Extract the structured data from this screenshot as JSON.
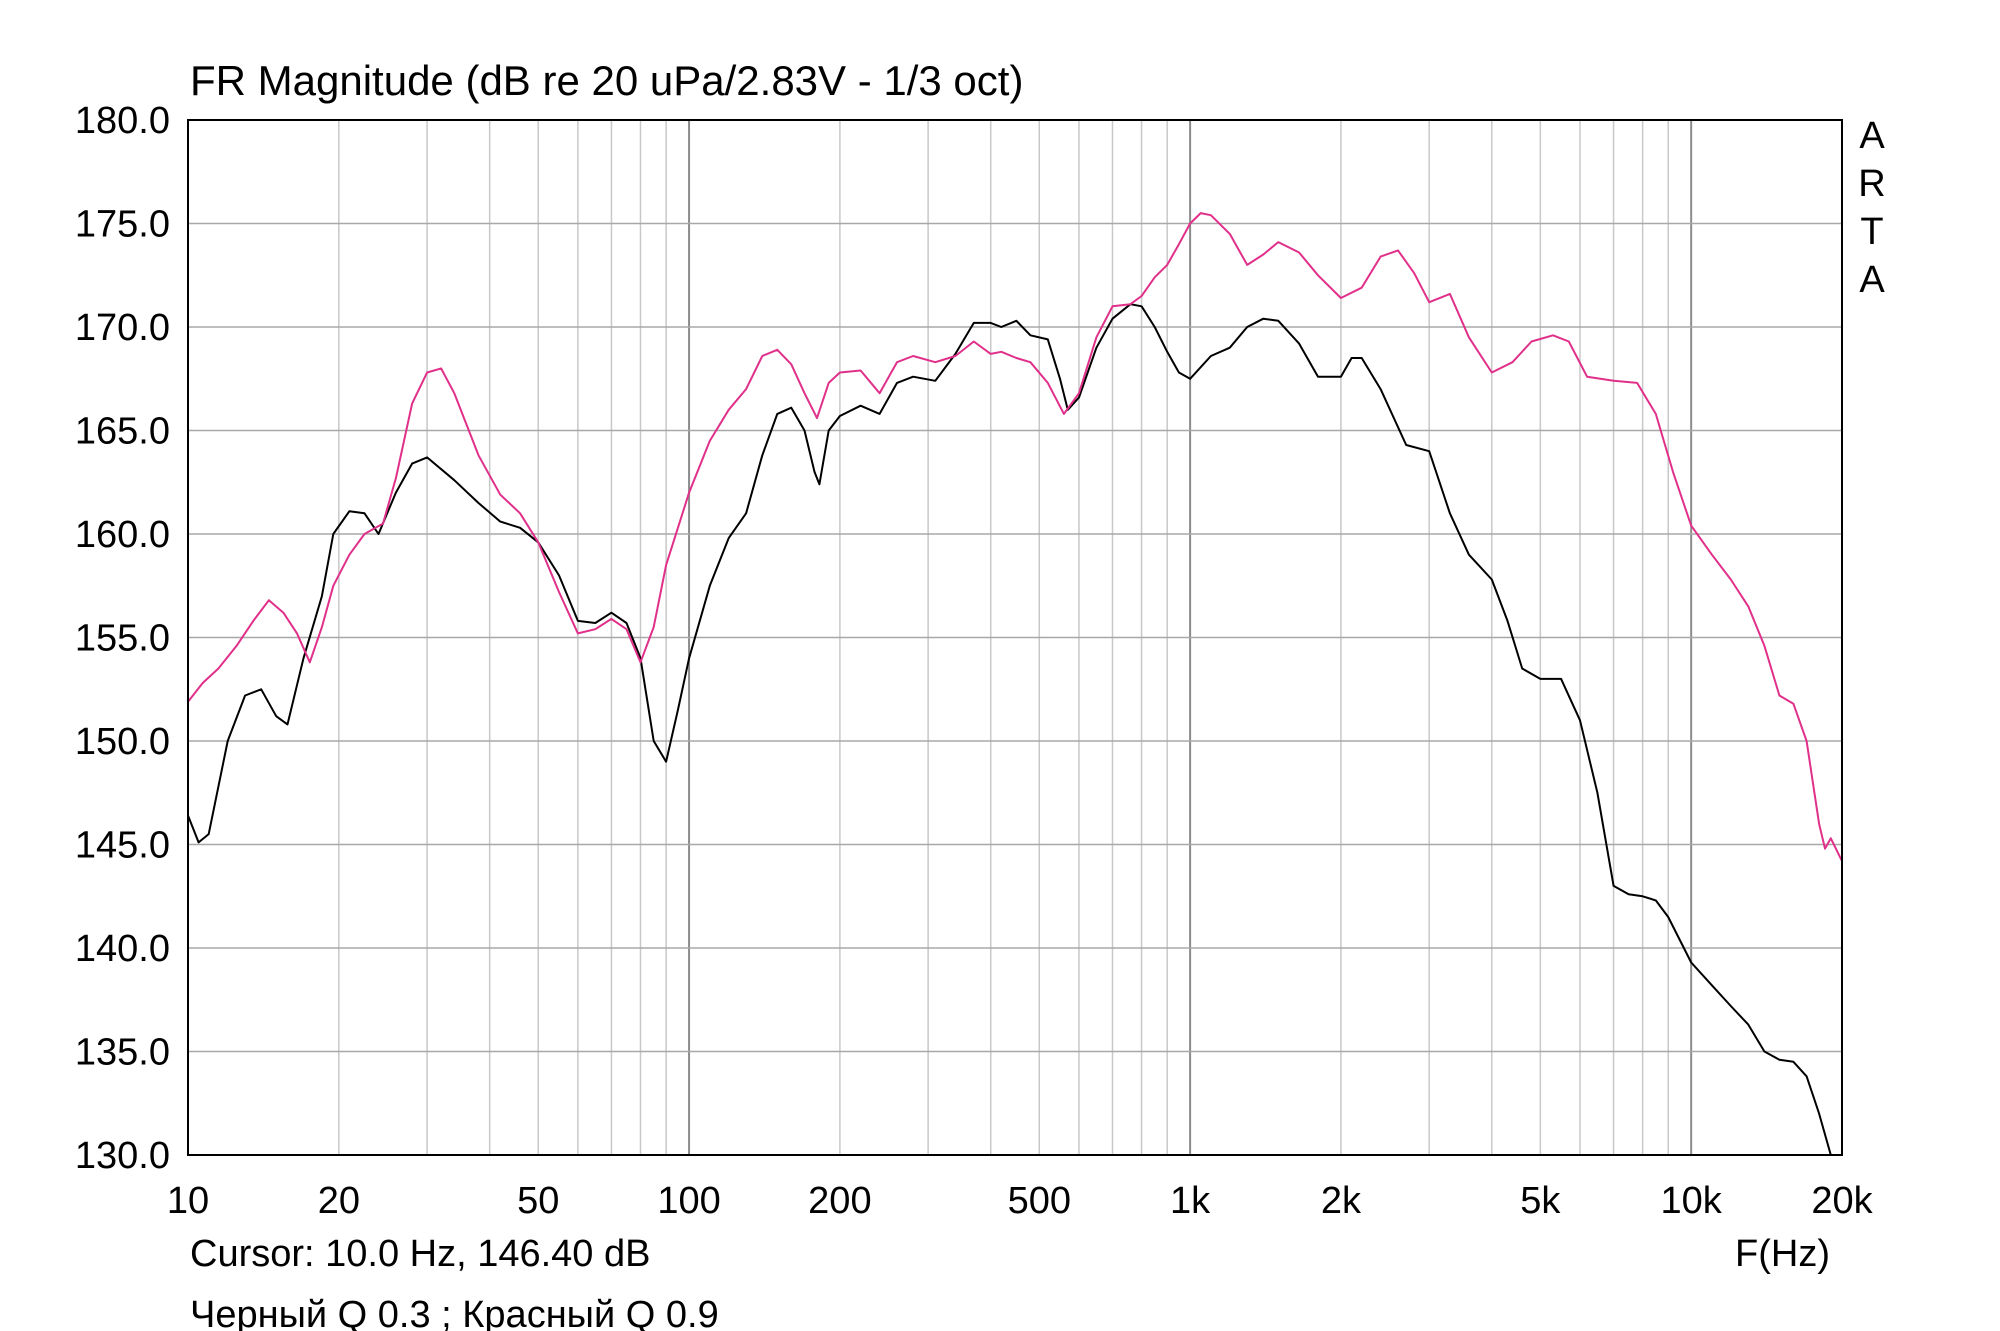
{
  "chart_data": {
    "type": "line",
    "title": "FR Magnitude (dB re 20 uPa/2.83V - 1/3 oct)",
    "xlabel": "F(Hz)",
    "ylabel": "",
    "x_scale": "log",
    "xlim": [
      10,
      20000
    ],
    "ylim": [
      130,
      180
    ],
    "grid": true,
    "y_ticks": [
      "180.0",
      "175.0",
      "170.0",
      "165.0",
      "160.0",
      "155.0",
      "150.0",
      "145.0",
      "140.0",
      "135.0",
      "130.0"
    ],
    "x_ticks": [
      {
        "value": 10,
        "label": "10"
      },
      {
        "value": 20,
        "label": "20"
      },
      {
        "value": 50,
        "label": "50"
      },
      {
        "value": 100,
        "label": "100"
      },
      {
        "value": 200,
        "label": "200"
      },
      {
        "value": 500,
        "label": "500"
      },
      {
        "value": 1000,
        "label": "1k"
      },
      {
        "value": 2000,
        "label": "2k"
      },
      {
        "value": 5000,
        "label": "5k"
      },
      {
        "value": 10000,
        "label": "10k"
      },
      {
        "value": 20000,
        "label": "20k"
      }
    ],
    "series": [
      {
        "color": "#000000",
        "points": [
          [
            10,
            146.4
          ],
          [
            10.5,
            145.1
          ],
          [
            11,
            145.5
          ],
          [
            12,
            150.0
          ],
          [
            13,
            152.2
          ],
          [
            14,
            152.5
          ],
          [
            15,
            151.2
          ],
          [
            15.8,
            150.8
          ],
          [
            17,
            154.0
          ],
          [
            18.5,
            157.0
          ],
          [
            19.5,
            160.0
          ],
          [
            21,
            161.1
          ],
          [
            22.5,
            161.0
          ],
          [
            24,
            160.0
          ],
          [
            26,
            162.0
          ],
          [
            28,
            163.4
          ],
          [
            30,
            163.7
          ],
          [
            34,
            162.6
          ],
          [
            38,
            161.5
          ],
          [
            42,
            160.6
          ],
          [
            46,
            160.3
          ],
          [
            50,
            159.6
          ],
          [
            55,
            158.0
          ],
          [
            60,
            155.8
          ],
          [
            65,
            155.7
          ],
          [
            70,
            156.2
          ],
          [
            75,
            155.7
          ],
          [
            80,
            154.0
          ],
          [
            85,
            150.0
          ],
          [
            90,
            149.0
          ],
          [
            95,
            151.5
          ],
          [
            100,
            154.0
          ],
          [
            110,
            157.5
          ],
          [
            120,
            159.8
          ],
          [
            130,
            161.0
          ],
          [
            140,
            163.8
          ],
          [
            150,
            165.8
          ],
          [
            160,
            166.1
          ],
          [
            170,
            165.0
          ],
          [
            178,
            163.0
          ],
          [
            182,
            162.4
          ],
          [
            190,
            165.0
          ],
          [
            200,
            165.7
          ],
          [
            220,
            166.2
          ],
          [
            240,
            165.8
          ],
          [
            260,
            167.3
          ],
          [
            280,
            167.6
          ],
          [
            310,
            167.4
          ],
          [
            340,
            168.7
          ],
          [
            370,
            170.2
          ],
          [
            400,
            170.2
          ],
          [
            420,
            170.0
          ],
          [
            450,
            170.3
          ],
          [
            480,
            169.6
          ],
          [
            520,
            169.4
          ],
          [
            550,
            167.5
          ],
          [
            570,
            166.0
          ],
          [
            600,
            166.6
          ],
          [
            650,
            169.0
          ],
          [
            700,
            170.4
          ],
          [
            760,
            171.1
          ],
          [
            800,
            171.0
          ],
          [
            850,
            170.0
          ],
          [
            900,
            168.8
          ],
          [
            950,
            167.8
          ],
          [
            1000,
            167.5
          ],
          [
            1100,
            168.6
          ],
          [
            1200,
            169.0
          ],
          [
            1300,
            170.0
          ],
          [
            1400,
            170.4
          ],
          [
            1500,
            170.3
          ],
          [
            1650,
            169.2
          ],
          [
            1800,
            167.6
          ],
          [
            2000,
            167.6
          ],
          [
            2100,
            168.5
          ],
          [
            2200,
            168.5
          ],
          [
            2400,
            167.0
          ],
          [
            2700,
            164.3
          ],
          [
            3000,
            164.0
          ],
          [
            3300,
            161.0
          ],
          [
            3600,
            159.0
          ],
          [
            4000,
            157.8
          ],
          [
            4300,
            155.8
          ],
          [
            4600,
            153.5
          ],
          [
            5000,
            153.0
          ],
          [
            5500,
            153.0
          ],
          [
            6000,
            151.0
          ],
          [
            6500,
            147.5
          ],
          [
            7000,
            143.0
          ],
          [
            7500,
            142.6
          ],
          [
            8000,
            142.5
          ],
          [
            8500,
            142.3
          ],
          [
            9000,
            141.5
          ],
          [
            10000,
            139.3
          ],
          [
            11000,
            138.2
          ],
          [
            12000,
            137.2
          ],
          [
            13000,
            136.3
          ],
          [
            14000,
            135.0
          ],
          [
            15000,
            134.6
          ],
          [
            16000,
            134.5
          ],
          [
            17000,
            133.8
          ],
          [
            18000,
            132.0
          ],
          [
            19000,
            130.0
          ]
        ]
      },
      {
        "color": "#e0308a",
        "points": [
          [
            10,
            151.9
          ],
          [
            10.7,
            152.8
          ],
          [
            11.5,
            153.5
          ],
          [
            12.5,
            154.6
          ],
          [
            13.5,
            155.8
          ],
          [
            14.5,
            156.8
          ],
          [
            15.5,
            156.2
          ],
          [
            16.5,
            155.2
          ],
          [
            17.5,
            153.8
          ],
          [
            18.5,
            155.5
          ],
          [
            19.5,
            157.5
          ],
          [
            21,
            159.0
          ],
          [
            22.5,
            160.0
          ],
          [
            24.5,
            160.5
          ],
          [
            26,
            162.7
          ],
          [
            28,
            166.3
          ],
          [
            30,
            167.8
          ],
          [
            32,
            168.0
          ],
          [
            34,
            166.8
          ],
          [
            38,
            163.8
          ],
          [
            42,
            161.9
          ],
          [
            46,
            161.0
          ],
          [
            50,
            159.6
          ],
          [
            55,
            157.2
          ],
          [
            60,
            155.2
          ],
          [
            65,
            155.4
          ],
          [
            70,
            155.9
          ],
          [
            75,
            155.4
          ],
          [
            80,
            153.8
          ],
          [
            85,
            155.5
          ],
          [
            90,
            158.5
          ],
          [
            100,
            162.0
          ],
          [
            110,
            164.5
          ],
          [
            120,
            166.0
          ],
          [
            130,
            167.0
          ],
          [
            140,
            168.6
          ],
          [
            150,
            168.9
          ],
          [
            160,
            168.2
          ],
          [
            170,
            166.8
          ],
          [
            180,
            165.6
          ],
          [
            190,
            167.3
          ],
          [
            200,
            167.8
          ],
          [
            220,
            167.9
          ],
          [
            240,
            166.8
          ],
          [
            260,
            168.3
          ],
          [
            280,
            168.6
          ],
          [
            310,
            168.3
          ],
          [
            340,
            168.6
          ],
          [
            370,
            169.3
          ],
          [
            400,
            168.7
          ],
          [
            420,
            168.8
          ],
          [
            450,
            168.5
          ],
          [
            480,
            168.3
          ],
          [
            520,
            167.3
          ],
          [
            560,
            165.8
          ],
          [
            600,
            166.8
          ],
          [
            650,
            169.5
          ],
          [
            700,
            171.0
          ],
          [
            760,
            171.1
          ],
          [
            800,
            171.5
          ],
          [
            850,
            172.4
          ],
          [
            900,
            173.0
          ],
          [
            950,
            174.0
          ],
          [
            1000,
            175.0
          ],
          [
            1050,
            175.5
          ],
          [
            1100,
            175.4
          ],
          [
            1200,
            174.5
          ],
          [
            1300,
            173.0
          ],
          [
            1400,
            173.5
          ],
          [
            1500,
            174.1
          ],
          [
            1650,
            173.6
          ],
          [
            1800,
            172.5
          ],
          [
            2000,
            171.4
          ],
          [
            2200,
            171.9
          ],
          [
            2400,
            173.4
          ],
          [
            2600,
            173.7
          ],
          [
            2800,
            172.6
          ],
          [
            3000,
            171.2
          ],
          [
            3300,
            171.6
          ],
          [
            3600,
            169.5
          ],
          [
            4000,
            167.8
          ],
          [
            4400,
            168.3
          ],
          [
            4800,
            169.3
          ],
          [
            5300,
            169.6
          ],
          [
            5700,
            169.3
          ],
          [
            6200,
            167.6
          ],
          [
            7000,
            167.4
          ],
          [
            7800,
            167.3
          ],
          [
            8500,
            165.8
          ],
          [
            9200,
            163.0
          ],
          [
            10000,
            160.4
          ],
          [
            11000,
            159.0
          ],
          [
            12000,
            157.8
          ],
          [
            13000,
            156.5
          ],
          [
            14000,
            154.6
          ],
          [
            15000,
            152.2
          ],
          [
            16000,
            151.8
          ],
          [
            17000,
            150.0
          ],
          [
            18000,
            146.0
          ],
          [
            18500,
            144.8
          ],
          [
            19000,
            145.3
          ],
          [
            20000,
            144.2
          ]
        ]
      }
    ]
  },
  "branding": {
    "letters": [
      "A",
      "R",
      "T",
      "A"
    ]
  },
  "cursor_readout": "Cursor: 10.0 Hz, 146.40 dB",
  "legend_note": "Черный Q 0.3 ; Красный Q 0.9"
}
